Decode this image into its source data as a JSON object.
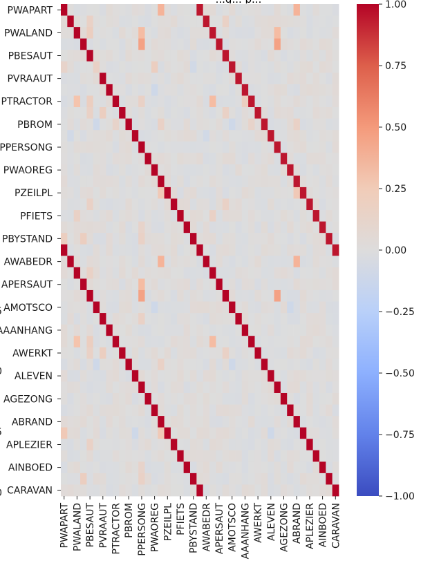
{
  "chart_data": {
    "type": "heatmap",
    "title": "...g... p...",
    "x_tick_labels": [
      "PWAPART",
      "PWALAND",
      "PBESAUT",
      "PVRAAUT",
      "PTRACTOR",
      "PBROM",
      "PPERSONG",
      "PWAOREG",
      "PZEILPL",
      "PFIETS",
      "PBYSTAND",
      "AWABEDR",
      "APERSAUT",
      "AMOTSCO",
      "AAANHANG",
      "AWERKT",
      "ALEVEN",
      "AGEZONG",
      "ABRAND",
      "APLEZIER",
      "AINBOED",
      "CARAVAN"
    ],
    "y_tick_labels": [
      "PWAPART",
      "PWALAND",
      "PBESAUT",
      "PVRAAUT",
      "PTRACTOR",
      "PBROM",
      "PPERSONG",
      "PWAOREG",
      "PZEILPL",
      "PFIETS",
      "PBYSTAND",
      "AWABEDR",
      "APERSAUT",
      "AMOTSCO",
      "AAANHANG",
      "AWERKT",
      "ALEVEN",
      "AGEZONG",
      "ABRAND",
      "APLEZIER",
      "AINBOED",
      "CARAVAN"
    ],
    "partial_axis_numbers": [
      "5",
      "0",
      "5",
      "0"
    ],
    "n_rows": 43,
    "n_cols": 43,
    "value_range": [
      -1.0,
      1.0
    ],
    "colormap": "coolwarm",
    "diagonals": [
      {
        "row_offset": 0,
        "col_offset": 0,
        "value": 1.0
      },
      {
        "row_offset": 21,
        "col_offset": 0,
        "value": 1.0
      },
      {
        "row_offset": 0,
        "col_offset": 21,
        "value": 0.95
      }
    ],
    "background_value": 0.0,
    "notable_cells": [
      {
        "row": 0,
        "col": 15,
        "value": 0.35
      },
      {
        "row": 0,
        "col": 36,
        "value": 0.35
      },
      {
        "row": 1,
        "col": 4,
        "value": 0.12
      },
      {
        "row": 1,
        "col": 25,
        "value": 0.12
      },
      {
        "row": 2,
        "col": 12,
        "value": 0.3
      },
      {
        "row": 2,
        "col": 33,
        "value": 0.3
      },
      {
        "row": 2,
        "col": 4,
        "value": 0.15
      },
      {
        "row": 3,
        "col": 12,
        "value": 0.45
      },
      {
        "row": 3,
        "col": 33,
        "value": 0.45
      },
      {
        "row": 5,
        "col": 0,
        "value": 0.1
      },
      {
        "row": 5,
        "col": 5,
        "value": 0.12
      },
      {
        "row": 5,
        "col": 14,
        "value": 0.15
      },
      {
        "row": 5,
        "col": 20,
        "value": -0.08
      },
      {
        "row": 7,
        "col": 14,
        "value": -0.1
      },
      {
        "row": 8,
        "col": 2,
        "value": 0.25
      },
      {
        "row": 8,
        "col": 4,
        "value": 0.15
      },
      {
        "row": 8,
        "col": 12,
        "value": 0.12
      },
      {
        "row": 8,
        "col": 23,
        "value": 0.3
      },
      {
        "row": 8,
        "col": 28,
        "value": 0.15
      },
      {
        "row": 9,
        "col": 4,
        "value": 0.12
      },
      {
        "row": 9,
        "col": 6,
        "value": 0.15
      },
      {
        "row": 9,
        "col": 25,
        "value": 0.12
      },
      {
        "row": 10,
        "col": 5,
        "value": -0.1
      },
      {
        "row": 10,
        "col": 8,
        "value": 0.1
      },
      {
        "row": 10,
        "col": 15,
        "value": 0.12
      },
      {
        "row": 10,
        "col": 26,
        "value": -0.1
      },
      {
        "row": 10,
        "col": 29,
        "value": 0.1
      },
      {
        "row": 10,
        "col": 36,
        "value": 0.12
      },
      {
        "row": 11,
        "col": 1,
        "value": -0.08
      },
      {
        "row": 11,
        "col": 22,
        "value": -0.08
      },
      {
        "row": 16,
        "col": 15,
        "value": 0.2
      },
      {
        "row": 16,
        "col": 36,
        "value": 0.2
      },
      {
        "row": 17,
        "col": 4,
        "value": 0.12
      },
      {
        "row": 17,
        "col": 25,
        "value": 0.12
      },
      {
        "row": 18,
        "col": 2,
        "value": 0.12
      },
      {
        "row": 18,
        "col": 23,
        "value": 0.12
      },
      {
        "row": 19,
        "col": 12,
        "value": 0.1
      },
      {
        "row": 20,
        "col": 0,
        "value": 0.15
      },
      {
        "row": 20,
        "col": 3,
        "value": 0.15
      },
      {
        "row": 20,
        "col": 12,
        "value": 0.12
      },
      {
        "row": 22,
        "col": 15,
        "value": 0.35
      },
      {
        "row": 22,
        "col": 36,
        "value": 0.35
      },
      {
        "row": 23,
        "col": 4,
        "value": 0.12
      },
      {
        "row": 24,
        "col": 12,
        "value": 0.3
      },
      {
        "row": 25,
        "col": 12,
        "value": 0.45
      },
      {
        "row": 25,
        "col": 33,
        "value": 0.45
      },
      {
        "row": 26,
        "col": 14,
        "value": -0.1
      },
      {
        "row": 26,
        "col": 35,
        "value": -0.1
      },
      {
        "row": 27,
        "col": 12,
        "value": 0.12
      },
      {
        "row": 29,
        "col": 2,
        "value": 0.25
      },
      {
        "row": 29,
        "col": 4,
        "value": 0.15
      },
      {
        "row": 29,
        "col": 23,
        "value": 0.3
      },
      {
        "row": 30,
        "col": 4,
        "value": 0.12
      },
      {
        "row": 30,
        "col": 6,
        "value": 0.15
      },
      {
        "row": 30,
        "col": 25,
        "value": 0.12
      },
      {
        "row": 31,
        "col": 5,
        "value": -0.1
      },
      {
        "row": 31,
        "col": 26,
        "value": -0.1
      },
      {
        "row": 31,
        "col": 15,
        "value": 0.12
      },
      {
        "row": 37,
        "col": 0,
        "value": 0.2
      },
      {
        "row": 37,
        "col": 15,
        "value": 0.2
      },
      {
        "row": 37,
        "col": 11,
        "value": -0.1
      },
      {
        "row": 37,
        "col": 32,
        "value": -0.1
      },
      {
        "row": 38,
        "col": 4,
        "value": 0.12
      },
      {
        "row": 40,
        "col": 12,
        "value": 0.1
      },
      {
        "row": 41,
        "col": 3,
        "value": 0.15
      },
      {
        "row": 41,
        "col": 12,
        "value": 0.12
      }
    ],
    "colorbar": {
      "ticks": [
        1.0,
        0.75,
        0.5,
        0.25,
        0.0,
        -0.25,
        -0.5,
        -0.75,
        -1.0
      ],
      "tick_labels": [
        "1.00",
        "0.75",
        "0.50",
        "0.25",
        "0.00",
        "−0.25",
        "−0.50",
        "−0.75",
        "−1.00"
      ]
    },
    "grid": false,
    "legend": "colorbar-right"
  }
}
